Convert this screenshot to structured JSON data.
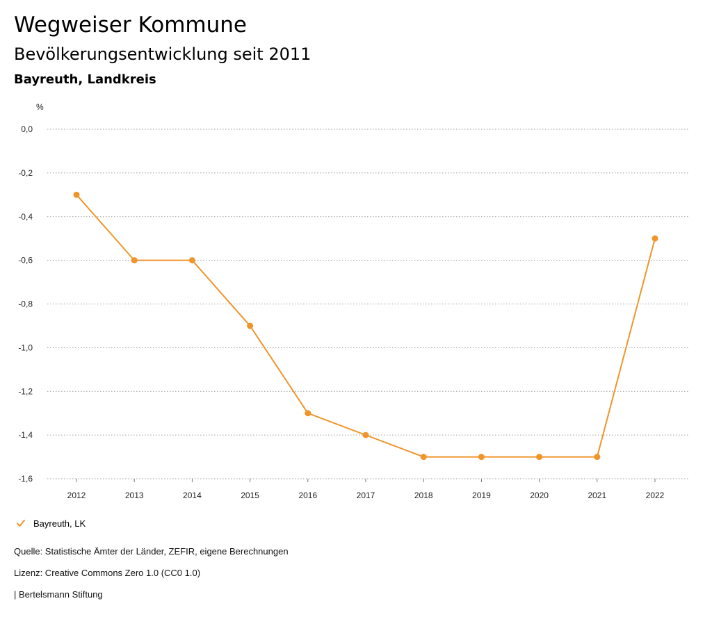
{
  "header": {
    "title": "Wegweiser Kommune",
    "subtitle": "Bevölkerungsentwicklung seit 2011",
    "region": "Bayreuth, Landkreis"
  },
  "chart_data": {
    "type": "line",
    "ylabel": "%",
    "categories": [
      "2012",
      "2013",
      "2014",
      "2015",
      "2016",
      "2017",
      "2018",
      "2019",
      "2020",
      "2021",
      "2022"
    ],
    "series": [
      {
        "name": "Bayreuth, LK",
        "color": "#f0952b",
        "values": [
          -0.3,
          -0.6,
          -0.6,
          -0.9,
          -1.3,
          -1.4,
          -1.5,
          -1.5,
          -1.5,
          -1.5,
          -0.5
        ]
      }
    ],
    "ylim": [
      -1.6,
      0.0
    ],
    "yticks": [
      "0,0",
      "-0,2",
      "-0,4",
      "-0,6",
      "-0,8",
      "-1,0",
      "-1,2",
      "-1,4",
      "-1,6"
    ],
    "ytick_values": [
      0.0,
      -0.2,
      -0.4,
      -0.6,
      -0.8,
      -1.0,
      -1.2,
      -1.4,
      -1.6
    ],
    "grid": true,
    "legend": "bottom-left"
  },
  "legend": {
    "label": "Bayreuth, LK"
  },
  "footer": {
    "source": "Quelle: Statistische Ämter der Länder, ZEFIR, eigene Berechnungen",
    "license": "Lizenz: Creative Commons Zero 1.0 (CC0 1.0)",
    "publisher": "| Bertelsmann Stiftung"
  }
}
